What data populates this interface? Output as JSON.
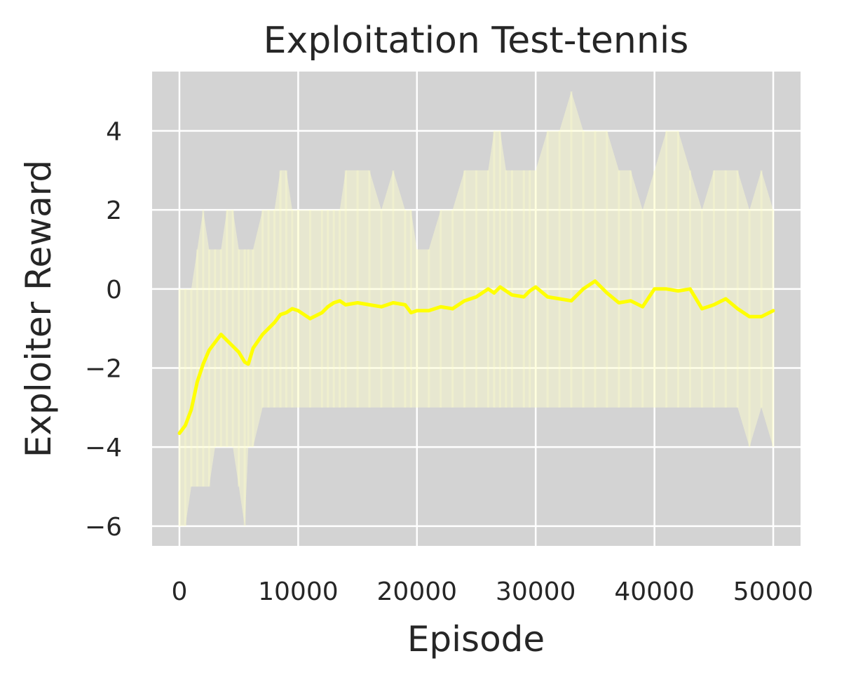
{
  "chart_data": {
    "type": "line",
    "title": "Exploitation Test-tennis",
    "xlabel": "Episode",
    "ylabel": "Exploiter Reward",
    "xlim": [
      -2300,
      52300
    ],
    "ylim": [
      -6.5,
      5.5
    ],
    "xticks": [
      0,
      10000,
      20000,
      30000,
      40000,
      50000
    ],
    "xtick_labels": [
      "0",
      "10000",
      "20000",
      "30000",
      "40000",
      "50000"
    ],
    "yticks": [
      -6,
      -4,
      -2,
      0,
      2,
      4
    ],
    "ytick_labels": [
      "−6",
      "−4",
      "−2",
      "0",
      "2",
      "4"
    ],
    "grid": true,
    "legend": "none",
    "colors": {
      "background": "#d3d3d3",
      "grid": "#ffffff",
      "line": "#ffff00",
      "band": "#ffffcc"
    },
    "series": [
      {
        "x": [
          0,
          500,
          1000,
          1500,
          2000,
          2500,
          3000,
          3500,
          4000,
          4500,
          5000,
          5500,
          5800,
          6200,
          7000,
          7500,
          8000,
          8500,
          9000,
          9500,
          10000,
          11000,
          12000,
          12500,
          13000,
          13500,
          14000,
          15000,
          16000,
          17000,
          18000,
          19000,
          19500,
          20000,
          21000,
          22000,
          23000,
          24000,
          25000,
          26000,
          26500,
          27000,
          27500,
          28000,
          29000,
          29500,
          30000,
          31000,
          32000,
          33000,
          34000,
          35000,
          36000,
          37000,
          38000,
          39000,
          40000,
          41000,
          42000,
          43000,
          44000,
          45000,
          46000,
          47000,
          48000,
          49000,
          50000
        ],
        "values": [
          -3.65,
          -3.45,
          -3.05,
          -2.35,
          -1.9,
          -1.55,
          -1.35,
          -1.15,
          -1.3,
          -1.45,
          -1.6,
          -1.85,
          -1.9,
          -1.5,
          -1.15,
          -1.0,
          -0.85,
          -0.65,
          -0.6,
          -0.5,
          -0.55,
          -0.75,
          -0.6,
          -0.45,
          -0.35,
          -0.3,
          -0.4,
          -0.35,
          -0.4,
          -0.45,
          -0.35,
          -0.4,
          -0.6,
          -0.55,
          -0.55,
          -0.45,
          -0.5,
          -0.3,
          -0.2,
          0.0,
          -0.1,
          0.05,
          -0.05,
          -0.15,
          -0.2,
          -0.05,
          0.05,
          -0.2,
          -0.25,
          -0.3,
          0.0,
          0.2,
          -0.1,
          -0.35,
          -0.3,
          -0.45,
          0.0,
          0.0,
          -0.05,
          0.0,
          -0.5,
          -0.4,
          -0.25,
          -0.5,
          -0.7,
          -0.7,
          -0.55
        ],
        "band_upper": [
          0.0,
          0.0,
          0.0,
          1.0,
          2.0,
          1.0,
          1.0,
          1.0,
          2.0,
          2.0,
          1.0,
          1.0,
          1.0,
          1.0,
          2.0,
          2.0,
          2.0,
          3.0,
          3.0,
          2.0,
          2.0,
          2.0,
          2.0,
          2.0,
          2.0,
          2.0,
          3.0,
          3.0,
          3.0,
          2.0,
          3.0,
          2.0,
          2.0,
          1.0,
          1.0,
          2.0,
          2.0,
          3.0,
          3.0,
          3.0,
          4.0,
          4.0,
          3.0,
          3.0,
          3.0,
          3.0,
          3.0,
          4.0,
          4.0,
          5.0,
          4.0,
          4.0,
          4.0,
          3.0,
          3.0,
          2.0,
          3.0,
          4.0,
          4.0,
          3.0,
          2.0,
          3.0,
          3.0,
          3.0,
          2.0,
          3.0,
          2.0
        ],
        "band_lower": [
          -6.0,
          -6.0,
          -5.0,
          -5.0,
          -5.0,
          -5.0,
          -4.0,
          -4.0,
          -4.0,
          -4.0,
          -5.0,
          -6.0,
          -4.0,
          -4.0,
          -3.0,
          -3.0,
          -3.0,
          -3.0,
          -3.0,
          -3.0,
          -3.0,
          -3.0,
          -3.0,
          -3.0,
          -3.0,
          -3.0,
          -3.0,
          -3.0,
          -3.0,
          -3.0,
          -3.0,
          -3.0,
          -3.0,
          -3.0,
          -3.0,
          -3.0,
          -3.0,
          -3.0,
          -3.0,
          -3.0,
          -3.0,
          -3.0,
          -3.0,
          -3.0,
          -3.0,
          -3.0,
          -3.0,
          -3.0,
          -3.0,
          -3.0,
          -3.0,
          -3.0,
          -3.0,
          -3.0,
          -3.0,
          -3.0,
          -3.0,
          -3.0,
          -3.0,
          -3.0,
          -3.0,
          -3.0,
          -3.0,
          -3.0,
          -4.0,
          -3.0,
          -4.0
        ]
      }
    ]
  }
}
